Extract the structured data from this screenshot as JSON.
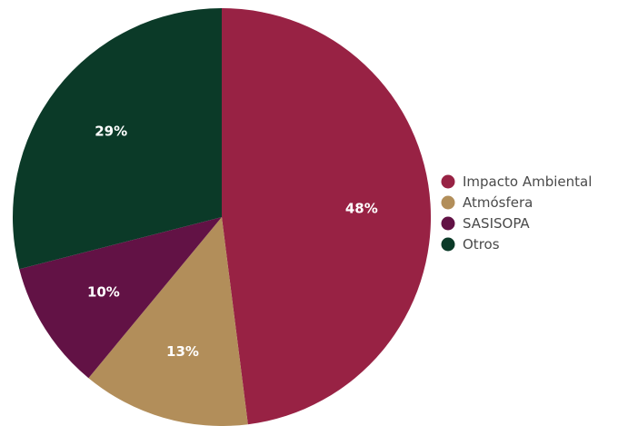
{
  "chart_data": {
    "type": "pie",
    "title": "",
    "start_angle_deg": 0,
    "direction": "clockwise",
    "legend_position": "right",
    "slices": [
      {
        "label": "Impacto Ambiental",
        "value": 48,
        "display": "48%",
        "color": "#982244"
      },
      {
        "label": "Atmósfera",
        "value": 13,
        "display": "13%",
        "color": "#b28e5a"
      },
      {
        "label": "SASISOPA",
        "value": 10,
        "display": "10%",
        "color": "#621245"
      },
      {
        "label": "Otros",
        "value": 29,
        "display": "29%",
        "color": "#0b3a28"
      }
    ]
  }
}
